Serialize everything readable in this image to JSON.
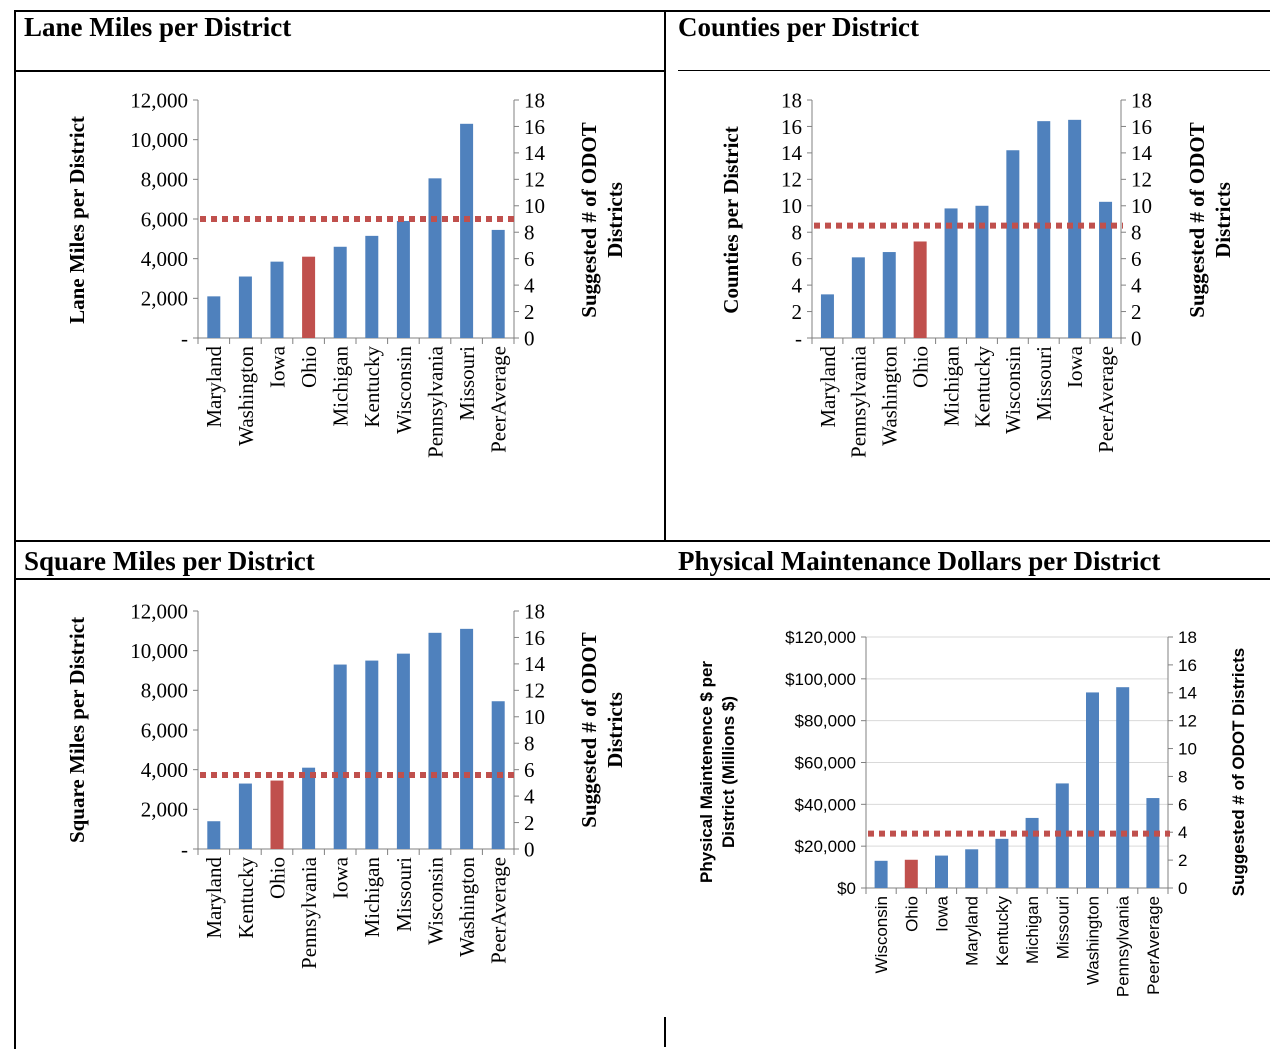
{
  "panels": [
    {
      "title": "Lane Miles per District"
    },
    {
      "title": "Counties per District"
    },
    {
      "title": "Square Miles per District"
    },
    {
      "title": "Physical Maintenance Dollars per District"
    }
  ],
  "colors": {
    "bar": "#4f81bd",
    "highlight": "#c0504d",
    "reference": "#c0504d"
  },
  "chart_data": [
    {
      "type": "bar",
      "title": "Lane Miles per District",
      "categories": [
        "Maryland",
        "Washington",
        "Iowa",
        "Ohio",
        "Michigan",
        "Kentucky",
        "Wisconsin",
        "Pennsylvania",
        "Missouri",
        "PeerAverage"
      ],
      "values": [
        2100,
        3100,
        3850,
        4100,
        4600,
        5150,
        5900,
        8050,
        10800,
        5450
      ],
      "highlight": "Ohio",
      "ylabel": "Lane Miles per District",
      "y_ticks": [
        "-",
        "2,000",
        "4,000",
        "6,000",
        "8,000",
        "10,000",
        "12,000"
      ],
      "ylim": [
        0,
        12000
      ],
      "y2label": "Suggested # of ODOT Districts",
      "y2_ticks": [
        "0",
        "2",
        "4",
        "6",
        "8",
        "10",
        "12",
        "14",
        "16",
        "18"
      ],
      "y2lim": [
        0,
        18
      ],
      "reference_line_y2": 9,
      "grid": false
    },
    {
      "type": "bar",
      "title": "Counties per District",
      "categories": [
        "Maryland",
        "Pennsylvania",
        "Washington",
        "Ohio",
        "Michigan",
        "Kentucky",
        "Wisconsin",
        "Missouri",
        "Iowa",
        "PeerAverage"
      ],
      "values": [
        3.3,
        6.1,
        6.5,
        7.3,
        9.8,
        10.0,
        14.2,
        16.4,
        16.5,
        10.3
      ],
      "highlight": "Ohio",
      "ylabel": "Counties per District",
      "y_ticks": [
        "-",
        "2",
        "4",
        "6",
        "8",
        "10",
        "12",
        "14",
        "16",
        "18"
      ],
      "ylim": [
        0,
        18
      ],
      "y2label": "Suggested # of ODOT Districts",
      "y2_ticks": [
        "0",
        "2",
        "4",
        "6",
        "8",
        "10",
        "12",
        "14",
        "16",
        "18"
      ],
      "y2lim": [
        0,
        18
      ],
      "reference_line_y2": 8.5,
      "grid": false
    },
    {
      "type": "bar",
      "title": "Square Miles per District",
      "categories": [
        "Maryland",
        "Kentucky",
        "Ohio",
        "Pennsylvania",
        "Iowa",
        "Michigan",
        "Missouri",
        "Wisconsin",
        "Washington",
        "PeerAverage"
      ],
      "values": [
        1400,
        3300,
        3450,
        4100,
        9300,
        9500,
        9850,
        10900,
        11100,
        7450
      ],
      "highlight": "Ohio",
      "ylabel": "Square Miles per District",
      "y_ticks": [
        "-",
        "2,000",
        "4,000",
        "6,000",
        "8,000",
        "10,000",
        "12,000"
      ],
      "ylim": [
        0,
        12000
      ],
      "y2label": "Suggested # of ODOT Districts",
      "y2_ticks": [
        "0",
        "2",
        "4",
        "6",
        "8",
        "10",
        "12",
        "14",
        "16",
        "18"
      ],
      "y2lim": [
        0,
        18
      ],
      "reference_line_y2": 5.6,
      "grid": false
    },
    {
      "type": "bar",
      "title": "Physical Maintenance Dollars per District",
      "categories": [
        "Wisconsin",
        "Ohio",
        "Iowa",
        "Maryland",
        "Kentucky",
        "Michigan",
        "Missouri",
        "Washington",
        "Pennsylvania",
        "PeerAverage"
      ],
      "values": [
        13000,
        13500,
        15500,
        18500,
        23500,
        33500,
        50000,
        93500,
        96000,
        43000
      ],
      "highlight": "Ohio",
      "ylabel": "Physical Maintenence $ per District (Millions $)",
      "y_ticks": [
        "$0",
        "$20,000",
        "$40,000",
        "$60,000",
        "$80,000",
        "$100,000",
        "$120,000"
      ],
      "ylim": [
        0,
        120000
      ],
      "y2label": "Suggested # of ODOT Districts",
      "y2_ticks": [
        "0",
        "2",
        "4",
        "6",
        "8",
        "10",
        "12",
        "14",
        "16",
        "18"
      ],
      "y2lim": [
        0,
        18
      ],
      "reference_line_y2": 3.9,
      "grid": true
    }
  ]
}
